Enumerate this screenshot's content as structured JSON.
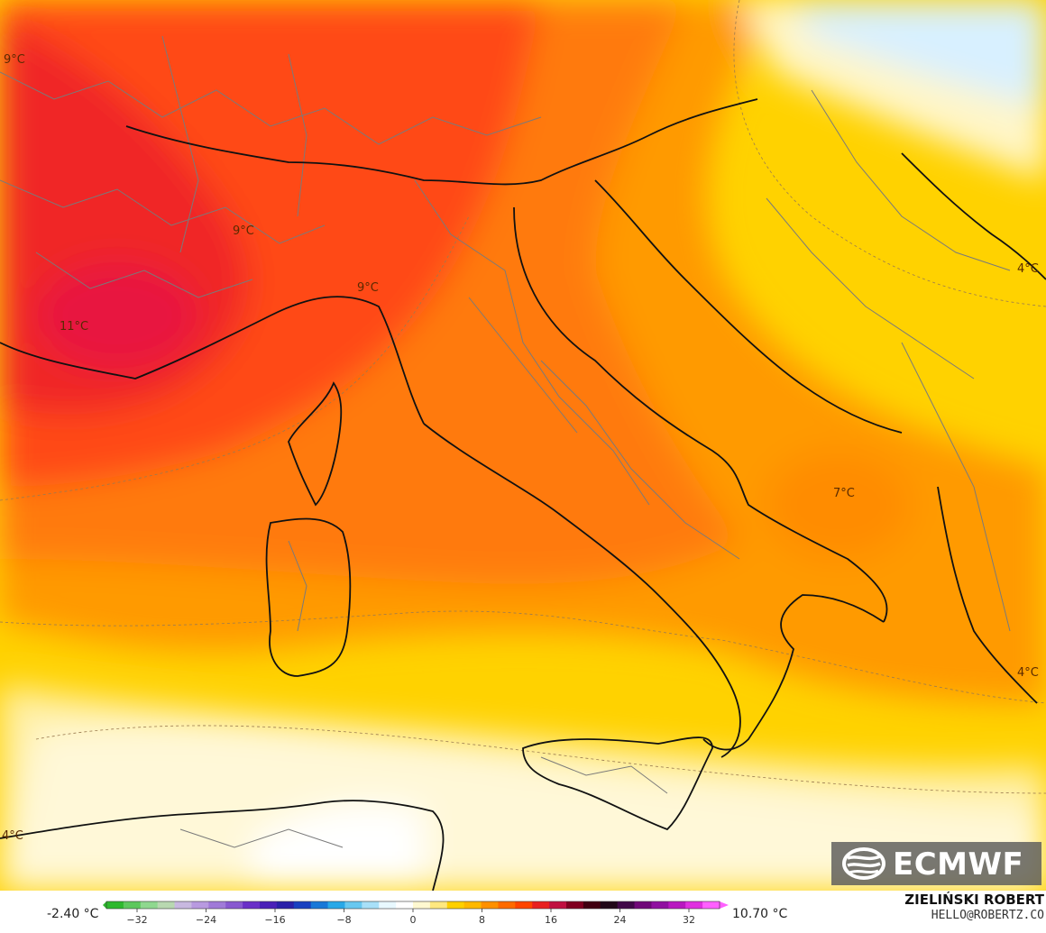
{
  "map": {
    "temperature_labels": [
      {
        "id": "nw",
        "text": "9°C"
      },
      {
        "id": "alps",
        "text": "9°C"
      },
      {
        "id": "genoa",
        "text": "9°C"
      },
      {
        "id": "provence",
        "text": "11°C"
      },
      {
        "id": "balkans-east",
        "text": "4°C"
      },
      {
        "id": "adriatic-south",
        "text": "7°C"
      },
      {
        "id": "greece-west",
        "text": "4°C"
      },
      {
        "id": "algeria",
        "text": "4°C"
      }
    ]
  },
  "legend": {
    "min_value": "-2.40 °C",
    "max_value": "10.70 °C",
    "ticks": [
      "−32",
      "−24",
      "−16",
      "−8",
      "0",
      "8",
      "16",
      "24",
      "32"
    ],
    "colors": [
      "#2eb82e",
      "#5dc85d",
      "#8fd88f",
      "#b8d8b0",
      "#c8b8e0",
      "#b89ae0",
      "#a07ad8",
      "#8858d0",
      "#6a30c8",
      "#4a20b8",
      "#2a20a8",
      "#1840c0",
      "#1878d8",
      "#28a8e8",
      "#68c8f0",
      "#a8e0f8",
      "#e8f8ff",
      "#ffffff",
      "#fff8d0",
      "#ffe880",
      "#ffd000",
      "#ffb800",
      "#ff9000",
      "#ff6a00",
      "#ff4400",
      "#e82020",
      "#c01040",
      "#800020",
      "#400010",
      "#200818",
      "#400848",
      "#700878",
      "#9010a0",
      "#b818c0",
      "#e030e0",
      "#ff60ff"
    ],
    "author": "ZIELIŃSKI ROBERT",
    "email": "HELLO@ROBERTZ.CO"
  },
  "logo": {
    "text": "ECMWF",
    "icon": "ecmwf-logo-icon"
  }
}
